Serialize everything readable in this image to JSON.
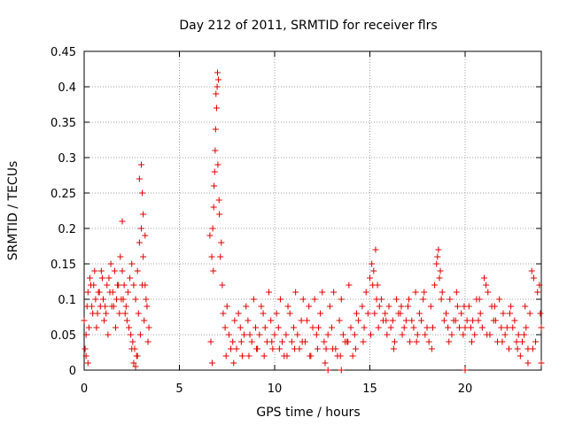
{
  "chart_data": {
    "type": "scatter",
    "title": "Day 212 of 2011, SRMTID for receiver flrs",
    "xlabel": "GPS time / hours",
    "ylabel": "SRMTID / TECUs",
    "xlim": [
      0,
      24
    ],
    "ylim": [
      0,
      0.45
    ],
    "x_ticks": [
      0,
      5,
      10,
      15,
      20
    ],
    "y_ticks": [
      0,
      0.05,
      0.1,
      0.15,
      0.2,
      0.25,
      0.3,
      0.35,
      0.4,
      0.45
    ],
    "grid": true,
    "marker": "plus",
    "color": "#e00000",
    "x": [
      0.0,
      0.1,
      0.2,
      0.3,
      0.4,
      0.5,
      0.6,
      0.7,
      0.8,
      0.9,
      1.0,
      1.1,
      1.2,
      1.3,
      1.4,
      1.5,
      1.6,
      1.7,
      1.8,
      1.9,
      2.0,
      2.1,
      2.2,
      2.3,
      2.4,
      2.5,
      2.6,
      2.7,
      2.8,
      2.9,
      3.0,
      3.1,
      3.2,
      3.3,
      3.4,
      0.05,
      0.25,
      0.45,
      0.65,
      0.85,
      1.05,
      1.25,
      1.45,
      1.65,
      1.85,
      2.05,
      2.25,
      2.45,
      2.65,
      2.85,
      3.05,
      3.25,
      0.15,
      0.35,
      0.55,
      0.75,
      0.95,
      1.15,
      1.35,
      1.55,
      1.75,
      1.95,
      2.15,
      2.35,
      2.55,
      2.75,
      2.95,
      3.15,
      3.35,
      2.0,
      2.9,
      3.0,
      3.05,
      3.1,
      3.2,
      2.6,
      2.7,
      2.8,
      0.1,
      0.2,
      2.5,
      6.6,
      6.7,
      6.8,
      6.85,
      6.9,
      6.95,
      7.0,
      7.05,
      7.1,
      7.2,
      7.3,
      6.75,
      6.82,
      6.88,
      6.92,
      6.98,
      7.02,
      7.08,
      7.15,
      7.25,
      6.65,
      6.72,
      6.78,
      7.4,
      7.6,
      7.8,
      8.0,
      8.2,
      8.4,
      8.6,
      8.8,
      9.0,
      9.2,
      9.4,
      9.6,
      9.8,
      10.0,
      10.2,
      10.4,
      10.6,
      10.8,
      11.0,
      11.2,
      11.4,
      11.6,
      11.8,
      12.0,
      12.2,
      12.4,
      12.6,
      12.8,
      13.0,
      13.2,
      13.4,
      13.6,
      13.8,
      14.0,
      14.2,
      14.4,
      7.5,
      7.7,
      7.9,
      8.1,
      8.3,
      8.5,
      8.7,
      8.9,
      9.1,
      9.3,
      9.5,
      9.7,
      9.9,
      10.1,
      10.3,
      10.5,
      10.7,
      10.9,
      11.1,
      11.3,
      11.5,
      11.7,
      11.9,
      12.1,
      12.3,
      12.5,
      12.7,
      12.9,
      13.1,
      13.3,
      13.5,
      13.7,
      13.9,
      14.1,
      14.3,
      7.45,
      7.85,
      8.25,
      8.65,
      9.05,
      9.45,
      9.85,
      10.25,
      10.65,
      11.05,
      11.45,
      11.85,
      12.25,
      12.65,
      13.05,
      13.45,
      13.85,
      14.25,
      14.6,
      14.8,
      15.0,
      15.1,
      15.2,
      15.3,
      15.4,
      15.6,
      15.8,
      16.0,
      16.2,
      16.4,
      16.6,
      16.8,
      17.0,
      17.2,
      17.4,
      17.6,
      17.8,
      18.0,
      18.2,
      18.4,
      18.5,
      18.6,
      18.7,
      18.8,
      19.0,
      19.2,
      19.4,
      19.6,
      19.8,
      20.0,
      20.2,
      20.4,
      20.6,
      20.8,
      21.0,
      21.2,
      21.4,
      21.6,
      21.8,
      22.0,
      22.2,
      22.4,
      22.6,
      22.8,
      23.0,
      23.2,
      23.4,
      23.6,
      23.8,
      24.0,
      14.7,
      14.9,
      15.15,
      15.35,
      15.5,
      15.7,
      15.9,
      16.1,
      16.3,
      16.5,
      16.7,
      16.9,
      17.1,
      17.3,
      17.5,
      17.7,
      17.9,
      18.1,
      18.3,
      18.55,
      18.65,
      18.9,
      19.1,
      19.3,
      19.5,
      19.7,
      19.9,
      20.1,
      20.3,
      20.5,
      20.7,
      20.9,
      21.1,
      21.3,
      21.5,
      21.7,
      21.9,
      22.1,
      22.3,
      22.5,
      22.7,
      22.9,
      23.1,
      23.3,
      23.5,
      23.7,
      23.9,
      14.65,
      15.05,
      15.25,
      15.45,
      15.85,
      16.25,
      16.65,
      17.05,
      17.45,
      17.85,
      18.25,
      18.75,
      19.15,
      19.55,
      19.95,
      20.35,
      20.75,
      21.15,
      21.55,
      21.95,
      22.35,
      22.75,
      23.15,
      23.55,
      23.95,
      12.8,
      13.5,
      20.0,
      23.3,
      24.0
    ],
    "y": [
      0.07,
      0.05,
      0.11,
      0.13,
      0.09,
      0.12,
      0.1,
      0.08,
      0.11,
      0.14,
      0.1,
      0.09,
      0.12,
      0.13,
      0.15,
      0.11,
      0.14,
      0.1,
      0.12,
      0.16,
      0.14,
      0.12,
      0.09,
      0.11,
      0.13,
      0.15,
      0.12,
      0.1,
      0.14,
      0.18,
      0.2,
      0.16,
      0.12,
      0.09,
      0.06,
      0.03,
      0.06,
      0.08,
      0.06,
      0.09,
      0.07,
      0.05,
      0.09,
      0.06,
      0.08,
      0.1,
      0.07,
      0.05,
      0.03,
      0.08,
      0.12,
      0.1,
      0.09,
      0.12,
      0.14,
      0.11,
      0.13,
      0.08,
      0.11,
      0.09,
      0.12,
      0.1,
      0.08,
      0.06,
      0.04,
      0.02,
      0.05,
      0.07,
      0.04,
      0.21,
      0.27,
      0.29,
      0.25,
      0.22,
      0.19,
      0.01,
      0.005,
      0.02,
      0.02,
      0.01,
      0.03,
      0.19,
      0.16,
      0.23,
      0.28,
      0.34,
      0.37,
      0.42,
      0.41,
      0.22,
      0.18,
      0.08,
      0.2,
      0.26,
      0.31,
      0.39,
      0.4,
      0.29,
      0.24,
      0.16,
      0.12,
      0.04,
      0.01,
      0.14,
      0.06,
      0.05,
      0.04,
      0.03,
      0.06,
      0.05,
      0.07,
      0.04,
      0.06,
      0.05,
      0.08,
      0.04,
      0.07,
      0.05,
      0.06,
      0.04,
      0.05,
      0.08,
      0.06,
      0.05,
      0.07,
      0.04,
      0.09,
      0.06,
      0.05,
      0.08,
      0.04,
      0.05,
      0.06,
      0.03,
      0.07,
      0.05,
      0.04,
      0.06,
      0.05,
      0.07,
      0.09,
      0.03,
      0.07,
      0.08,
      0.02,
      0.09,
      0.05,
      0.1,
      0.03,
      0.09,
      0.06,
      0.11,
      0.03,
      0.08,
      0.1,
      0.02,
      0.09,
      0.04,
      0.11,
      0.03,
      0.1,
      0.07,
      0.02,
      0.1,
      0.06,
      0.11,
      0.03,
      0.09,
      0.11,
      0.02,
      0.1,
      0.04,
      0.12,
      0.02,
      0.08,
      0.02,
      0.01,
      0.04,
      0.02,
      0.03,
      0.02,
      0.04,
      0.03,
      0.02,
      0.03,
      0.04,
      0.02,
      0.03,
      0.01,
      0.03,
      0.02,
      0.04,
      0.03,
      0.09,
      0.11,
      0.13,
      0.15,
      0.14,
      0.17,
      0.12,
      0.1,
      0.08,
      0.09,
      0.07,
      0.1,
      0.08,
      0.06,
      0.09,
      0.07,
      0.11,
      0.08,
      0.1,
      0.06,
      0.09,
      0.12,
      0.15,
      0.17,
      0.14,
      0.11,
      0.08,
      0.1,
      0.07,
      0.09,
      0.08,
      0.06,
      0.09,
      0.07,
      0.1,
      0.08,
      0.13,
      0.11,
      0.09,
      0.07,
      0.1,
      0.08,
      0.06,
      0.09,
      0.07,
      0.05,
      0.04,
      0.06,
      0.08,
      0.13,
      0.11,
      0.06,
      0.06,
      0.08,
      0.12,
      0.1,
      0.09,
      0.07,
      0.05,
      0.06,
      0.04,
      0.08,
      0.05,
      0.07,
      0.04,
      0.06,
      0.05,
      0.07,
      0.05,
      0.04,
      0.06,
      0.16,
      0.13,
      0.07,
      0.06,
      0.05,
      0.07,
      0.06,
      0.05,
      0.07,
      0.06,
      0.05,
      0.07,
      0.06,
      0.12,
      0.05,
      0.07,
      0.04,
      0.06,
      0.05,
      0.03,
      0.06,
      0.04,
      0.02,
      0.05,
      0.03,
      0.14,
      0.04,
      0.12,
      0.04,
      0.05,
      0.08,
      0.06,
      0.07,
      0.03,
      0.09,
      0.1,
      0.04,
      0.11,
      0.03,
      0.1,
      0.04,
      0.11,
      0.09,
      0.04,
      0.1,
      0.05,
      0.09,
      0.04,
      0.08,
      0.03,
      0.09,
      0.03,
      0.08,
      0.0,
      0.0,
      0.0,
      0.01,
      0.01
    ]
  }
}
